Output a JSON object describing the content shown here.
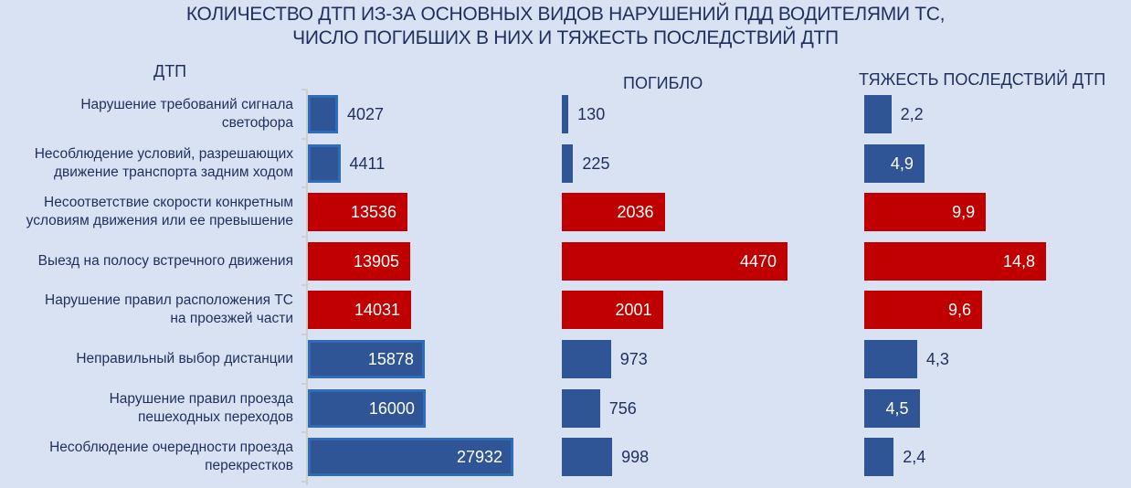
{
  "title": {
    "line1": "КОЛИЧЕСТВО ДТП ИЗ-ЗА ОСНОВНЫХ ВИДОВ НАРУШЕНИЙ ПДД ВОДИТЕЛЯМИ ТС,",
    "line2": "ЧИСЛО ПОГИБШИХ В НИХ И ТЯЖЕСТЬ ПОСЛЕДСТВИЙ ДТП"
  },
  "panels": {
    "dtp": "ДТП",
    "killed": "ПОГИБЛО",
    "severity": "ТЯЖЕСТЬ ПОСЛЕДСТВИЙ ДТП"
  },
  "categories": [
    {
      "line1": "Нарушение требований сигнала",
      "line2": "светофора"
    },
    {
      "line1": "Несоблюдение условий, разрешающих",
      "line2": "движение транспорта задним ходом"
    },
    {
      "line1": "Несоответствие скорости конкретным",
      "line2": "условиям движения или ее превышение"
    },
    {
      "line1": "Выезд на полосу встречного движения",
      "line2": ""
    },
    {
      "line1": "Нарушение правил расположения ТС",
      "line2": "на проезжей части"
    },
    {
      "line1": "Неправильный выбор дистанции",
      "line2": ""
    },
    {
      "line1": "Нарушение правил проезда",
      "line2": "пешеходных переходов"
    },
    {
      "line1": "Несоблюдение очередности проезда",
      "line2": "перекрестков"
    }
  ],
  "values": {
    "dtp": [
      "4027",
      "4411",
      "13536",
      "13905",
      "14031",
      "15878",
      "16000",
      "27932"
    ],
    "killed": [
      "130",
      "225",
      "2036",
      "4470",
      "2001",
      "973",
      "756",
      "998"
    ],
    "severity": [
      "2,2",
      "4,9",
      "9,9",
      "14,8",
      "9,6",
      "4,3",
      "4,5",
      "2,4"
    ]
  },
  "colors": {
    "background": "#d9e2f3",
    "blue": "#2f5597",
    "blue_outline": "#2e6bb8",
    "red": "#c00000",
    "text": "#1f2f5c"
  },
  "chart_data": [
    {
      "type": "bar",
      "orientation": "horizontal",
      "title": "ДТП",
      "categories": [
        "Нарушение требований сигнала светофора",
        "Несоблюдение условий, разрешающих движение транспорта задним ходом",
        "Несоответствие скорости конкретным условиям движения или ее превышение",
        "Выезд на полосу встречного движения",
        "Нарушение правил расположения ТС на проезжей части",
        "Неправильный выбор дистанции",
        "Нарушение правил проезда пешеходных переходов",
        "Несоблюдение очередности проезда перекрестков"
      ],
      "values": [
        4027,
        4411,
        13536,
        13905,
        14031,
        15878,
        16000,
        27932
      ],
      "highlighted": [
        false,
        false,
        true,
        true,
        true,
        false,
        false,
        false
      ],
      "xlabel": "",
      "ylabel": "",
      "grid": false,
      "legend": "none"
    },
    {
      "type": "bar",
      "orientation": "horizontal",
      "title": "ПОГИБЛО",
      "categories_ref": "same as ДТП",
      "values": [
        130,
        225,
        2036,
        4470,
        2001,
        973,
        756,
        998
      ],
      "highlighted": [
        false,
        false,
        true,
        true,
        true,
        false,
        false,
        false
      ],
      "grid": false,
      "legend": "none"
    },
    {
      "type": "bar",
      "orientation": "horizontal",
      "title": "ТЯЖЕСТЬ ПОСЛЕДСТВИЙ ДТП",
      "categories_ref": "same as ДТП",
      "values": [
        2.2,
        4.9,
        9.9,
        14.8,
        9.6,
        4.3,
        4.5,
        2.4
      ],
      "highlighted": [
        false,
        false,
        true,
        true,
        true,
        false,
        false,
        false
      ],
      "grid": false,
      "legend": "none"
    }
  ],
  "overall_title": "КОЛИЧЕСТВО ДТП ИЗ-ЗА ОСНОВНЫХ ВИДОВ НАРУШЕНИЙ ПДД ВОДИТЕЛЯМИ ТС, ЧИСЛО ПОГИБШИХ В НИХ И ТЯЖЕСТЬ ПОСЛЕДСТВИЙ ДТП"
}
